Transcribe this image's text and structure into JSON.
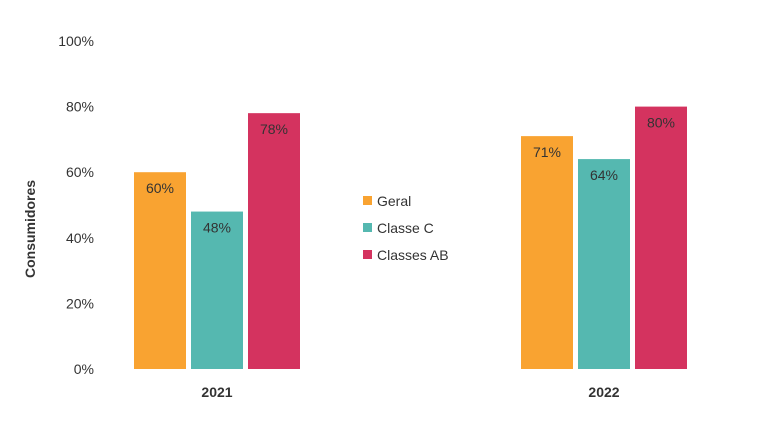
{
  "chart_data": {
    "type": "bar",
    "ylabel": "Consumidores",
    "xlabel": "",
    "categories": [
      "2021",
      "2022"
    ],
    "yticks": [
      "0%",
      "20%",
      "40%",
      "60%",
      "80%",
      "100%"
    ],
    "ylim": [
      0,
      100
    ],
    "grid": false,
    "legend_position": "center",
    "series": [
      {
        "name": "Geral",
        "color": "#F9A331",
        "values": [
          60,
          71
        ],
        "labels": [
          "60%",
          "71%"
        ]
      },
      {
        "name": "Classe C",
        "color": "#55B8B0",
        "values": [
          48,
          64
        ],
        "labels": [
          "48%",
          "64%"
        ]
      },
      {
        "name": "Classes AB",
        "color": "#D4335F",
        "values": [
          78,
          80
        ],
        "labels": [
          "78%",
          "80%"
        ]
      }
    ]
  }
}
